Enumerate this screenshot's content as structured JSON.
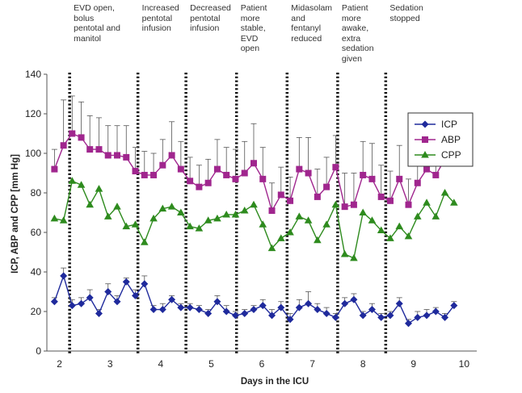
{
  "chart_data": {
    "type": "line",
    "xlabel": "Days in the ICU",
    "ylabel": "ICP, ABP and CPP [mm Hg]",
    "ylim": [
      0,
      140
    ],
    "yticks": [
      0,
      20,
      40,
      60,
      80,
      100,
      120,
      140
    ],
    "xlim": [
      1.75,
      10.25
    ],
    "xticks": [
      {
        "label": "2",
        "x": 2.0
      },
      {
        "label": "3",
        "x": 3.0
      },
      {
        "label": "4",
        "x": 4.0
      },
      {
        "label": "5",
        "x": 5.0
      },
      {
        "label": "6",
        "x": 6.0
      },
      {
        "label": "7",
        "x": 7.0
      },
      {
        "label": "8",
        "x": 8.0
      },
      {
        "label": "9",
        "x": 9.0
      },
      {
        "label": "10",
        "x": 10.0
      }
    ],
    "legend": {
      "position": "top-right",
      "entries": [
        "ICP",
        "ABP",
        "CPP"
      ]
    },
    "events": [
      {
        "x": 2.2,
        "text": "EVD open,\nbolus\npentotal and\nmanitol"
      },
      {
        "x": 3.55,
        "text": "Increased\npentotal\ninfusion"
      },
      {
        "x": 4.5,
        "text": "Decreased\npentotal\ninfusion"
      },
      {
        "x": 5.5,
        "text": "Patient\nmore\nstable,\nEVD\nopen"
      },
      {
        "x": 6.5,
        "text": "Midasolam\nand\nfentanyl\nreduced"
      },
      {
        "x": 7.5,
        "text": "Patient\nmore\nawake,\nextra\nsedation\ngiven"
      },
      {
        "x": 8.45,
        "text": "Sedation\nstopped"
      }
    ],
    "series": [
      {
        "name": "ICP",
        "color": "#1f2a9c",
        "marker": "diamond",
        "x": [
          1.9,
          2.08,
          2.25,
          2.43,
          2.6,
          2.78,
          2.96,
          3.14,
          3.32,
          3.5,
          3.68,
          3.86,
          4.04,
          4.22,
          4.4,
          4.58,
          4.76,
          4.94,
          5.12,
          5.3,
          5.48,
          5.66,
          5.84,
          6.02,
          6.2,
          6.38,
          6.56,
          6.74,
          6.92,
          7.1,
          7.28,
          7.46,
          7.64,
          7.82,
          8.0,
          8.18,
          8.36,
          8.54,
          8.72,
          8.9,
          9.08,
          9.26,
          9.44,
          9.62,
          9.8
        ],
        "values": [
          25,
          38,
          23,
          24,
          27,
          19,
          30,
          25,
          35,
          28,
          34,
          21,
          21,
          26,
          22,
          22,
          21,
          19,
          25,
          20,
          18,
          19,
          21,
          23,
          18,
          22,
          16,
          22,
          24,
          21,
          19,
          17,
          24,
          26,
          18,
          21,
          17,
          18,
          24,
          14,
          17,
          18,
          20,
          17,
          23
        ],
        "err": [
          2,
          4,
          3,
          3,
          4,
          2,
          4,
          3,
          2,
          3,
          4,
          2,
          3,
          2,
          2,
          2,
          2,
          2,
          3,
          3,
          2,
          2,
          2,
          3,
          3,
          3,
          3,
          4,
          6,
          3,
          3,
          2,
          3,
          3,
          2,
          3,
          2,
          2,
          3,
          2,
          3,
          3,
          2,
          2,
          2
        ]
      },
      {
        "name": "ABP",
        "color": "#a0268e",
        "marker": "square",
        "x": [
          1.9,
          2.08,
          2.25,
          2.43,
          2.6,
          2.78,
          2.96,
          3.14,
          3.32,
          3.5,
          3.68,
          3.86,
          4.04,
          4.22,
          4.4,
          4.58,
          4.76,
          4.94,
          5.12,
          5.3,
          5.48,
          5.66,
          5.84,
          6.02,
          6.2,
          6.38,
          6.56,
          6.74,
          6.92,
          7.1,
          7.28,
          7.46,
          7.64,
          7.82,
          8.0,
          8.18,
          8.36,
          8.54,
          8.72,
          8.9,
          9.08,
          9.26,
          9.44,
          9.62,
          9.8
        ],
        "values": [
          92,
          104,
          110,
          108,
          102,
          102,
          99,
          99,
          98,
          91,
          89,
          89,
          94,
          99,
          92,
          86,
          83,
          85,
          92,
          89,
          87,
          90,
          95,
          87,
          71,
          79,
          76,
          92,
          90,
          78,
          83,
          93,
          73,
          74,
          89,
          87,
          78,
          76,
          87,
          74,
          85,
          92,
          89,
          97,
          99
        ],
        "err": [
          10,
          23,
          19,
          18,
          17,
          16,
          15,
          15,
          16,
          12,
          12,
          11,
          13,
          17,
          14,
          12,
          11,
          12,
          15,
          14,
          15,
          16,
          20,
          16,
          14,
          14,
          12,
          16,
          18,
          14,
          15,
          16,
          17,
          16,
          17,
          18,
          16,
          15,
          17,
          13,
          13,
          15,
          14,
          16,
          16
        ]
      },
      {
        "name": "CPP",
        "color": "#2e8b1e",
        "marker": "triangle",
        "x": [
          1.9,
          2.08,
          2.25,
          2.43,
          2.6,
          2.78,
          2.96,
          3.14,
          3.32,
          3.5,
          3.68,
          3.86,
          4.04,
          4.22,
          4.4,
          4.58,
          4.76,
          4.94,
          5.12,
          5.3,
          5.48,
          5.66,
          5.84,
          6.02,
          6.2,
          6.38,
          6.56,
          6.74,
          6.92,
          7.1,
          7.28,
          7.46,
          7.64,
          7.82,
          8.0,
          8.18,
          8.36,
          8.54,
          8.72,
          8.9,
          9.08,
          9.26,
          9.44,
          9.62,
          9.8
        ],
        "values": [
          67,
          66,
          86,
          84,
          74,
          82,
          68,
          73,
          63,
          64,
          55,
          67,
          72,
          73,
          70,
          63,
          62,
          66,
          67,
          69,
          69,
          71,
          74,
          64,
          52,
          57,
          60,
          68,
          66,
          56,
          64,
          74,
          49,
          47,
          70,
          66,
          61,
          57,
          63,
          58,
          68,
          75,
          68,
          80,
          75
        ]
      }
    ]
  }
}
